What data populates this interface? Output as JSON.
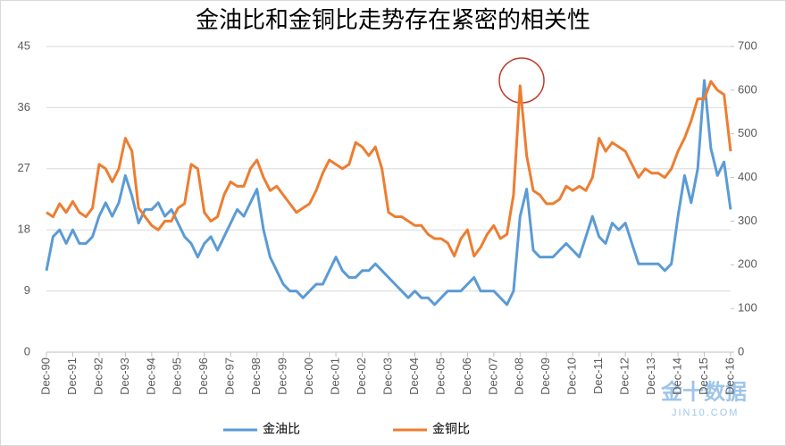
{
  "chart_data": {
    "type": "line",
    "title": "金油比和金铜比走势存在紧密的相关性",
    "categories": [
      "Dec-90",
      null,
      null,
      null,
      "Dec-91",
      null,
      null,
      null,
      "Dec-92",
      null,
      null,
      null,
      "Dec-93",
      null,
      null,
      null,
      "Dec-94",
      null,
      null,
      null,
      "Dec-95",
      null,
      null,
      null,
      "Dec-96",
      null,
      null,
      null,
      "Dec-97",
      null,
      null,
      null,
      "Dec-98",
      null,
      null,
      null,
      "Dec-99",
      null,
      null,
      null,
      "Dec-00",
      null,
      null,
      null,
      "Dec-01",
      null,
      null,
      null,
      "Dec-02",
      null,
      null,
      null,
      "Dec-03",
      null,
      null,
      null,
      "Dec-04",
      null,
      null,
      null,
      "Dec-05",
      null,
      null,
      null,
      "Dec-06",
      null,
      null,
      null,
      "Dec-07",
      null,
      null,
      null,
      "Dec-08",
      null,
      null,
      null,
      "Dec-09",
      null,
      null,
      null,
      "Dec-10",
      null,
      null,
      null,
      "Dec-11",
      null,
      null,
      null,
      "Dec-12",
      null,
      null,
      null,
      "Dec-13",
      null,
      null,
      null,
      "Dec-14",
      null,
      null,
      null,
      "Dec-15",
      null,
      null,
      null,
      "Dec-16"
    ],
    "series": [
      {
        "name": "金油比",
        "color": "#5b9bd5",
        "axis": "y",
        "values": [
          12,
          17,
          18,
          16,
          18,
          16,
          16,
          17,
          20,
          22,
          20,
          22,
          26,
          23,
          19,
          21,
          21,
          22,
          20,
          21,
          19,
          17,
          16,
          14,
          16,
          17,
          15,
          17,
          19,
          21,
          20,
          22,
          24,
          18,
          14,
          12,
          10,
          9,
          9,
          8,
          9,
          10,
          10,
          12,
          14,
          12,
          11,
          11,
          12,
          12,
          13,
          12,
          11,
          10,
          9,
          8,
          9,
          8,
          8,
          7,
          8,
          9,
          9,
          9,
          10,
          11,
          9,
          9,
          9,
          8,
          7,
          9,
          20,
          24,
          15,
          14,
          14,
          14,
          15,
          16,
          15,
          14,
          17,
          20,
          17,
          16,
          19,
          18,
          19,
          16,
          13,
          13,
          13,
          13,
          12,
          13,
          20,
          26,
          22,
          27,
          40,
          30,
          26,
          28,
          21
        ]
      },
      {
        "name": "金铜比",
        "color": "#ed7d31",
        "axis": "y2",
        "values": [
          320,
          310,
          340,
          320,
          345,
          320,
          310,
          330,
          430,
          420,
          390,
          420,
          490,
          460,
          330,
          310,
          290,
          280,
          300,
          300,
          330,
          340,
          430,
          420,
          320,
          300,
          310,
          360,
          390,
          380,
          380,
          420,
          440,
          400,
          370,
          380,
          360,
          340,
          320,
          330,
          340,
          370,
          410,
          440,
          430,
          420,
          430,
          480,
          470,
          450,
          470,
          420,
          320,
          310,
          310,
          300,
          290,
          290,
          270,
          260,
          260,
          250,
          220,
          260,
          280,
          220,
          240,
          270,
          290,
          260,
          270,
          360,
          610,
          450,
          370,
          360,
          340,
          340,
          350,
          380,
          370,
          380,
          370,
          400,
          490,
          460,
          480,
          470,
          460,
          430,
          400,
          420,
          410,
          410,
          400,
          420,
          460,
          490,
          530,
          580,
          580,
          620,
          600,
          590,
          460
        ]
      }
    ],
    "ylim": [
      0,
      45
    ],
    "yticks": [
      0,
      9,
      18,
      27,
      36,
      45
    ],
    "y2lim": [
      0,
      700
    ],
    "y2ticks": [
      0,
      100,
      200,
      300,
      400,
      500,
      600,
      700
    ],
    "grid": true,
    "legend": "bottom",
    "watermark": [
      "金十数据",
      "JIN10.COM"
    ]
  }
}
